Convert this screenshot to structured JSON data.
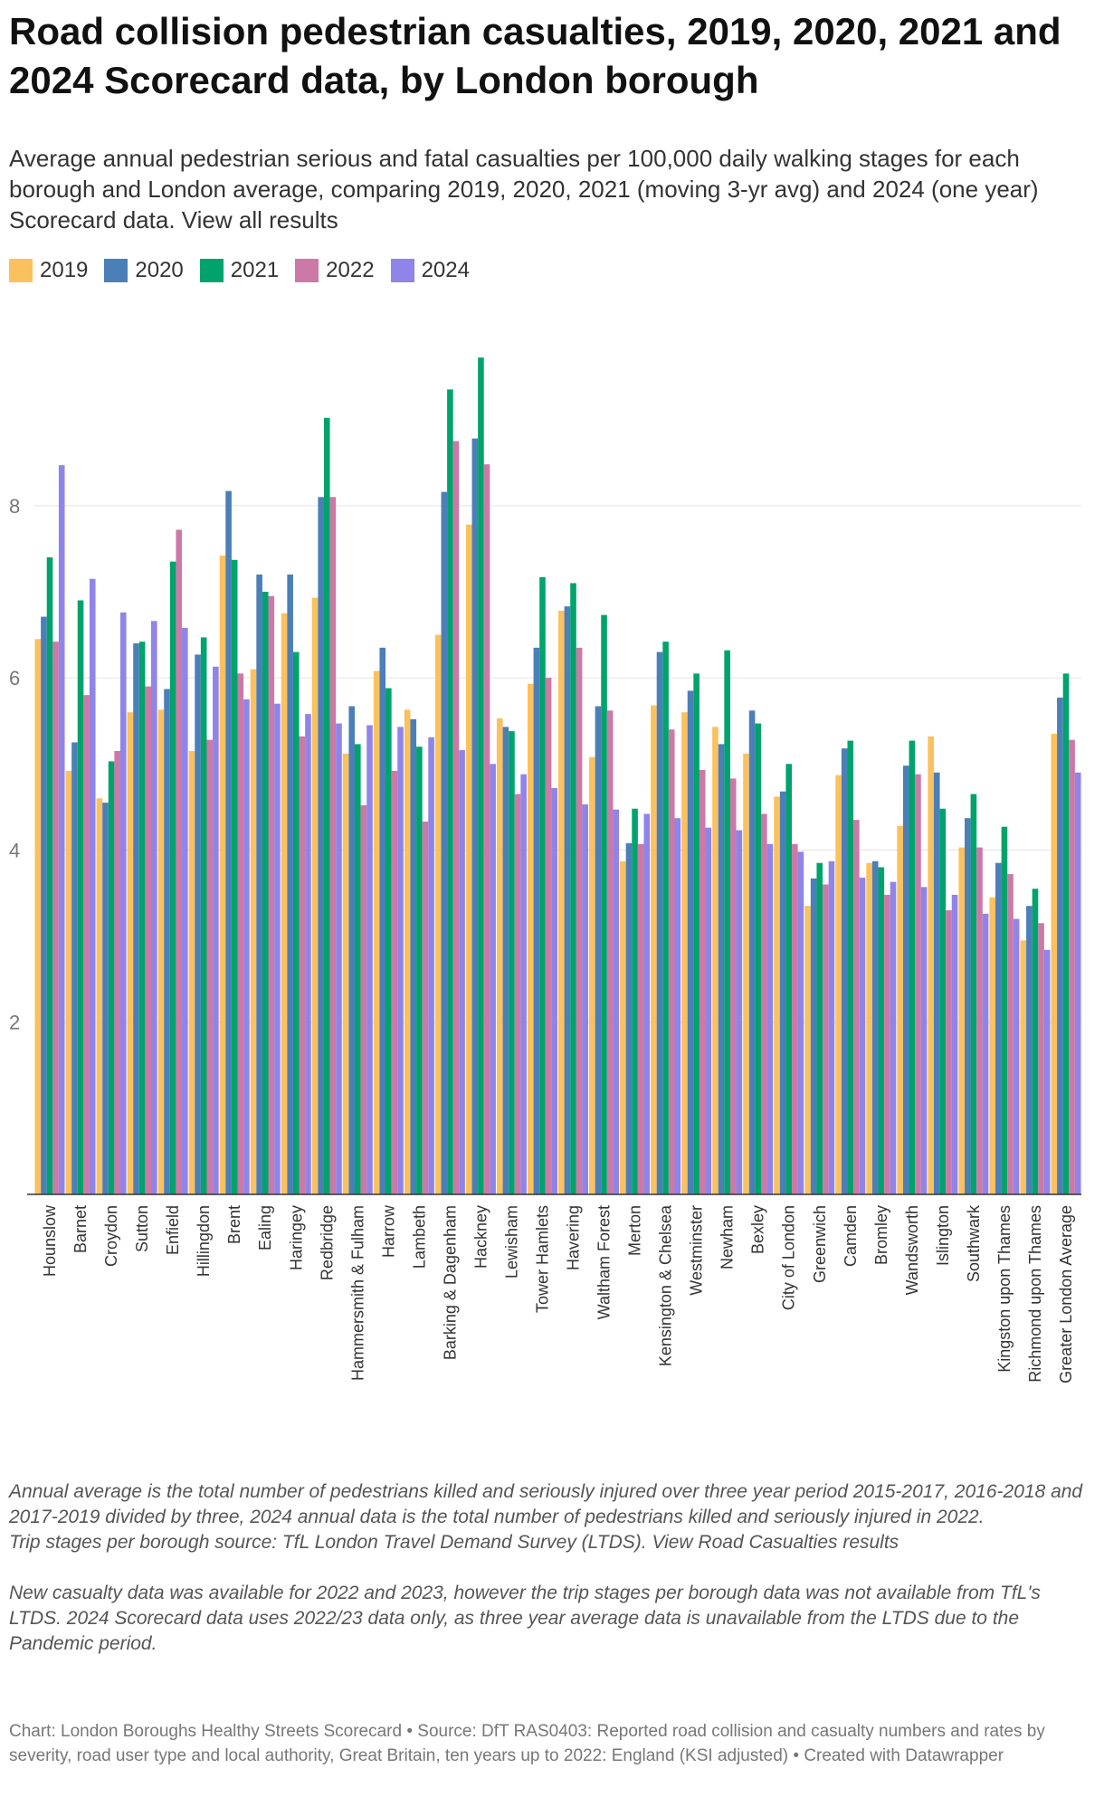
{
  "title": "Road collision pedestrian casualties, 2019, 2020, 2021 and 2024 Scorecard data, by London borough",
  "subtitle": "Average annual pedestrian serious and fatal casualties per 100,000 daily walking stages for each borough and London average, comparing 2019, 2020, 2021 (moving 3-yr avg) and 2024 (one year) Scorecard data. View all results",
  "notes": {
    "note1": "Annual average is the total number of pedestrians killed and seriously injured over three year period 2015-2017, 2016-2018 and 2017-2019 divided by three, 2024 annual data is the total number of pedestrians killed and seriously injured in 2022.",
    "note2": "Trip stages per borough source: TfL London Travel Demand Survey (LTDS). View Road Casualties results",
    "note3": "New casualty data was available for 2022 and 2023, however the trip stages per borough data was not available from TfL's LTDS. 2024 Scorecard data uses 2022/23 data only, as three year average data is unavailable from the LTDS due to the Pandemic period."
  },
  "footer": "Chart: London Boroughs Healthy Streets Scorecard • Source: DfT RAS0403: Reported road collision and casualty numbers and rates by severity, road user type and local authority, Great Britain, ten years up to 2022: England (KSI adjusted) • Created with Datawrapper",
  "chart_data": {
    "type": "bar",
    "title": "Road collision pedestrian casualties, 2019, 2020, 2021 and 2024 Scorecard data, by London borough",
    "ylim": [
      0,
      10
    ],
    "yticks": [
      2,
      4,
      6,
      8
    ],
    "grid": true,
    "legend_position": "top-left",
    "categories": [
      "Hounslow",
      "Barnet",
      "Croydon",
      "Sutton",
      "Enfield",
      "Hillingdon",
      "Brent",
      "Ealing",
      "Haringey",
      "Redbridge",
      "Hammersmith & Fulham",
      "Harrow",
      "Lambeth",
      "Barking & Dagenham",
      "Hackney",
      "Lewisham",
      "Tower Hamlets",
      "Havering",
      "Waltham Forest",
      "Merton",
      "Kensington & Chelsea",
      "Westminster",
      "Newham",
      "Bexley",
      "City of London",
      "Greenwich",
      "Camden",
      "Bromley",
      "Wandsworth",
      "Islington",
      "Southwark",
      "Kingston upon Thames",
      "Richmond upon Thames",
      "Greater London Average"
    ],
    "series": [
      {
        "name": "2019",
        "color": "#fbc15e",
        "values": [
          6.45,
          4.92,
          4.6,
          5.6,
          5.63,
          5.15,
          7.42,
          6.1,
          6.75,
          6.93,
          5.12,
          6.08,
          5.63,
          6.5,
          7.78,
          5.53,
          5.93,
          6.78,
          5.08,
          3.87,
          5.68,
          5.6,
          5.43,
          5.12,
          4.62,
          3.35,
          4.87,
          3.85,
          4.28,
          5.32,
          4.03,
          3.45,
          2.95,
          5.35
        ]
      },
      {
        "name": "2020",
        "color": "#4b7fb8",
        "values": [
          6.71,
          5.25,
          4.55,
          6.4,
          5.87,
          6.27,
          8.17,
          7.2,
          7.2,
          8.1,
          5.67,
          6.35,
          5.52,
          8.16,
          8.78,
          5.43,
          6.35,
          6.83,
          5.67,
          4.08,
          6.3,
          5.85,
          5.23,
          5.62,
          4.68,
          3.67,
          5.18,
          3.87,
          4.98,
          4.9,
          4.37,
          3.85,
          3.35,
          5.77
        ]
      },
      {
        "name": "2021",
        "color": "#00a36c",
        "values": [
          7.4,
          6.9,
          5.03,
          6.42,
          7.35,
          6.47,
          7.37,
          7.0,
          6.3,
          9.02,
          5.23,
          5.88,
          5.2,
          9.35,
          9.72,
          5.38,
          7.17,
          7.1,
          6.73,
          4.48,
          6.42,
          6.05,
          6.32,
          5.47,
          5.0,
          3.85,
          5.27,
          3.8,
          5.27,
          4.48,
          4.65,
          4.27,
          3.55,
          6.05
        ]
      },
      {
        "name": "2022",
        "color": "#cc79a7",
        "values": [
          6.42,
          5.8,
          5.15,
          5.9,
          7.72,
          5.28,
          6.05,
          6.95,
          5.32,
          8.1,
          4.52,
          4.92,
          4.33,
          8.75,
          8.48,
          4.65,
          6.0,
          6.35,
          5.62,
          4.07,
          5.4,
          4.93,
          4.83,
          4.42,
          4.07,
          3.6,
          4.35,
          3.48,
          4.88,
          3.3,
          4.03,
          3.72,
          3.15,
          5.28
        ]
      },
      {
        "name": "2024",
        "color": "#8f85e8",
        "values": [
          8.47,
          7.15,
          6.76,
          6.66,
          6.58,
          6.13,
          5.75,
          5.7,
          5.58,
          5.47,
          5.45,
          5.43,
          5.31,
          5.16,
          5.0,
          4.88,
          4.72,
          4.53,
          4.47,
          4.42,
          4.37,
          4.26,
          4.23,
          4.07,
          3.98,
          3.87,
          3.68,
          3.63,
          3.57,
          3.48,
          3.26,
          3.2,
          2.84,
          4.9
        ]
      }
    ]
  }
}
